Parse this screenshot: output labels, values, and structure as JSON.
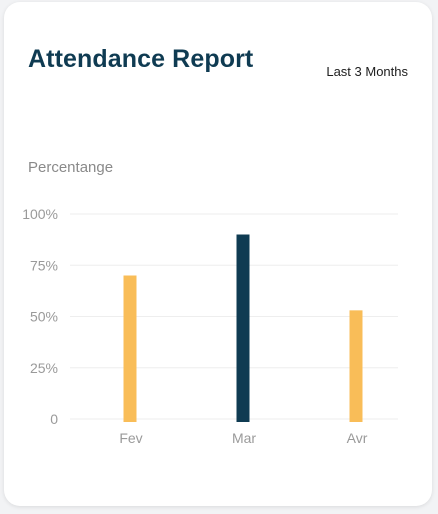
{
  "card": {
    "title": "Attendance Report",
    "period": "Last 3 Months",
    "y_title": "Percentange"
  },
  "colors": {
    "title": "#0f3b52",
    "bar_default": "#f9bd58",
    "bar_highlight": "#0f3b52",
    "grid": "#eeeeee",
    "tick_text": "#9a9a9a"
  },
  "chart_data": {
    "type": "bar",
    "categories": [
      "Fev",
      "Mar",
      "Avr"
    ],
    "values": [
      70,
      90,
      53
    ],
    "highlight": [
      false,
      true,
      false
    ],
    "ylabel": "Percentange",
    "ylim": [
      0,
      100
    ],
    "y_ticks": [
      {
        "value": 100,
        "label": "100%"
      },
      {
        "value": 75,
        "label": "75%"
      },
      {
        "value": 50,
        "label": "50%"
      },
      {
        "value": 25,
        "label": "25%"
      },
      {
        "value": 0,
        "label": "0"
      }
    ],
    "grid": true,
    "legend": "none"
  }
}
